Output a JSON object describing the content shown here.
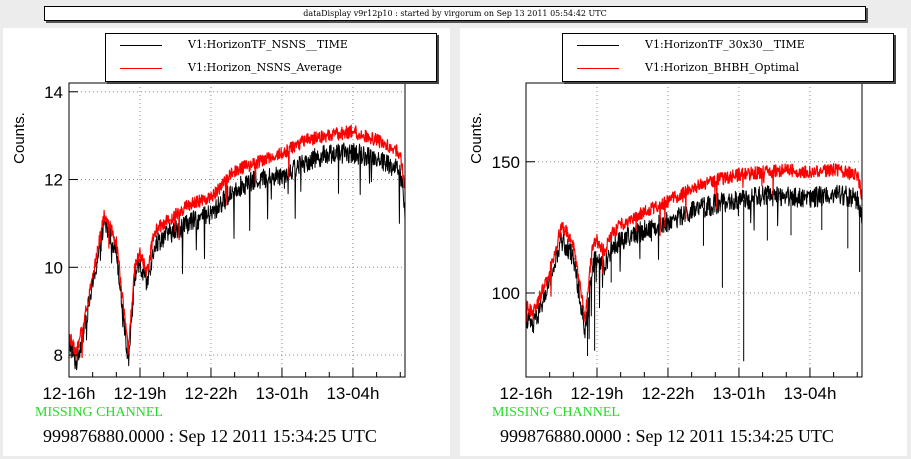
{
  "window_title": "dataDisplay v9r12p10 : started by virgorum on Sep 13 2011 05:54:42 UTC",
  "panels": [
    {
      "missing_text": "MISSING CHANNEL",
      "footer_text": "999876880.0000 : Sep 12 2011 15:34:25 UTC",
      "legend": [
        "V1:HorizonTF_NSNS__TIME",
        "V1:Horizon_NSNS_Average"
      ]
    },
    {
      "missing_text": "MISSING CHANNEL",
      "footer_text": "999876880.0000 : Sep 12 2011 15:34:25 UTC",
      "legend": [
        "V1:HorizonTF_30x30__TIME",
        "V1:Horizon_BHBH_Optimal"
      ]
    }
  ],
  "colors": {
    "series_time": "#000000",
    "series_avg": "#ff0000",
    "missing": "#22dd22"
  },
  "chart_data": [
    {
      "type": "line",
      "ylabel": "Counts.",
      "xlabel": "",
      "xticks": [
        "12-16h",
        "12-19h",
        "12-22h",
        "13-01h",
        "13-04h"
      ],
      "xticks_hours": [
        0,
        3,
        6,
        9,
        12
      ],
      "xlim_hours": [
        0,
        14.2
      ],
      "yticks": [
        8,
        10,
        12,
        14
      ],
      "ylim": [
        7.5,
        14.2
      ],
      "grid": true,
      "legend_position": "top",
      "series": [
        {
          "name": "V1:HorizonTF_NSNS__TIME",
          "x_hours": [
            0,
            0.3,
            0.6,
            1,
            1.5,
            2,
            2.5,
            2.8,
            3,
            3.3,
            3.6,
            4,
            5,
            6,
            7,
            8,
            9,
            10,
            11,
            12,
            13,
            14,
            14.2
          ],
          "values": [
            8.3,
            7.8,
            8.5,
            9.6,
            11.0,
            10.4,
            7.9,
            9.9,
            10.0,
            9.6,
            10.5,
            10.7,
            11.0,
            11.2,
            11.8,
            12.0,
            12.1,
            12.4,
            12.6,
            12.6,
            12.5,
            12.2,
            11.3
          ]
        },
        {
          "name": "V1:Horizon_NSNS_Average",
          "x_hours": [
            0,
            0.3,
            0.6,
            1,
            1.5,
            2,
            2.5,
            2.8,
            3,
            3.3,
            3.6,
            4,
            5,
            6,
            7,
            8,
            9,
            10,
            11,
            12,
            13,
            14,
            14.2
          ],
          "values": [
            8.5,
            8.0,
            8.7,
            9.8,
            11.2,
            10.6,
            8.1,
            10.1,
            10.3,
            9.9,
            10.8,
            11.0,
            11.4,
            11.6,
            12.2,
            12.4,
            12.6,
            12.9,
            13.0,
            13.1,
            12.9,
            12.6,
            11.8
          ]
        }
      ]
    },
    {
      "type": "line",
      "ylabel": "Counts.",
      "xlabel": "",
      "xticks": [
        "12-16h",
        "12-19h",
        "12-22h",
        "13-01h",
        "13-04h"
      ],
      "xticks_hours": [
        0,
        3,
        6,
        9,
        12
      ],
      "xlim_hours": [
        0,
        14.2
      ],
      "yticks": [
        100,
        150
      ],
      "ylim": [
        68,
        180
      ],
      "grid": true,
      "legend_position": "top",
      "series": [
        {
          "name": "V1:HorizonTF_30x30__TIME",
          "x_hours": [
            0,
            0.3,
            0.6,
            1,
            1.5,
            2,
            2.5,
            2.8,
            3,
            3.3,
            3.6,
            4,
            5,
            6,
            7,
            8,
            9,
            10,
            11,
            12,
            13,
            14,
            14.2
          ],
          "values": [
            91,
            87,
            94,
            104,
            120,
            114,
            85,
            111,
            113,
            110,
            117,
            120,
            124,
            127,
            131,
            134,
            135,
            137,
            137,
            136,
            138,
            136,
            128
          ],
          "spikes": [
            [
              2.6,
              76
            ],
            [
              2.9,
              78
            ],
            [
              3.6,
              104
            ],
            [
              7.5,
              118
            ],
            [
              8.3,
              102
            ],
            [
              9.2,
              74
            ],
            [
              10.2,
              120
            ],
            [
              11.2,
              122
            ],
            [
              12.5,
              124
            ],
            [
              13.6,
              117
            ],
            [
              14.1,
              108
            ]
          ]
        },
        {
          "name": "V1:Horizon_BHBH_Optimal",
          "x_hours": [
            0,
            0.3,
            0.6,
            1,
            1.5,
            2,
            2.5,
            2.8,
            3,
            3.3,
            3.6,
            4,
            5,
            6,
            7,
            8,
            9,
            10,
            11,
            12,
            13,
            14,
            14.2
          ],
          "values": [
            96,
            92,
            99,
            108,
            126,
            119,
            90,
            117,
            120,
            116,
            122,
            126,
            131,
            135,
            140,
            143,
            145,
            146,
            147,
            146,
            147,
            145,
            137
          ]
        }
      ]
    }
  ]
}
